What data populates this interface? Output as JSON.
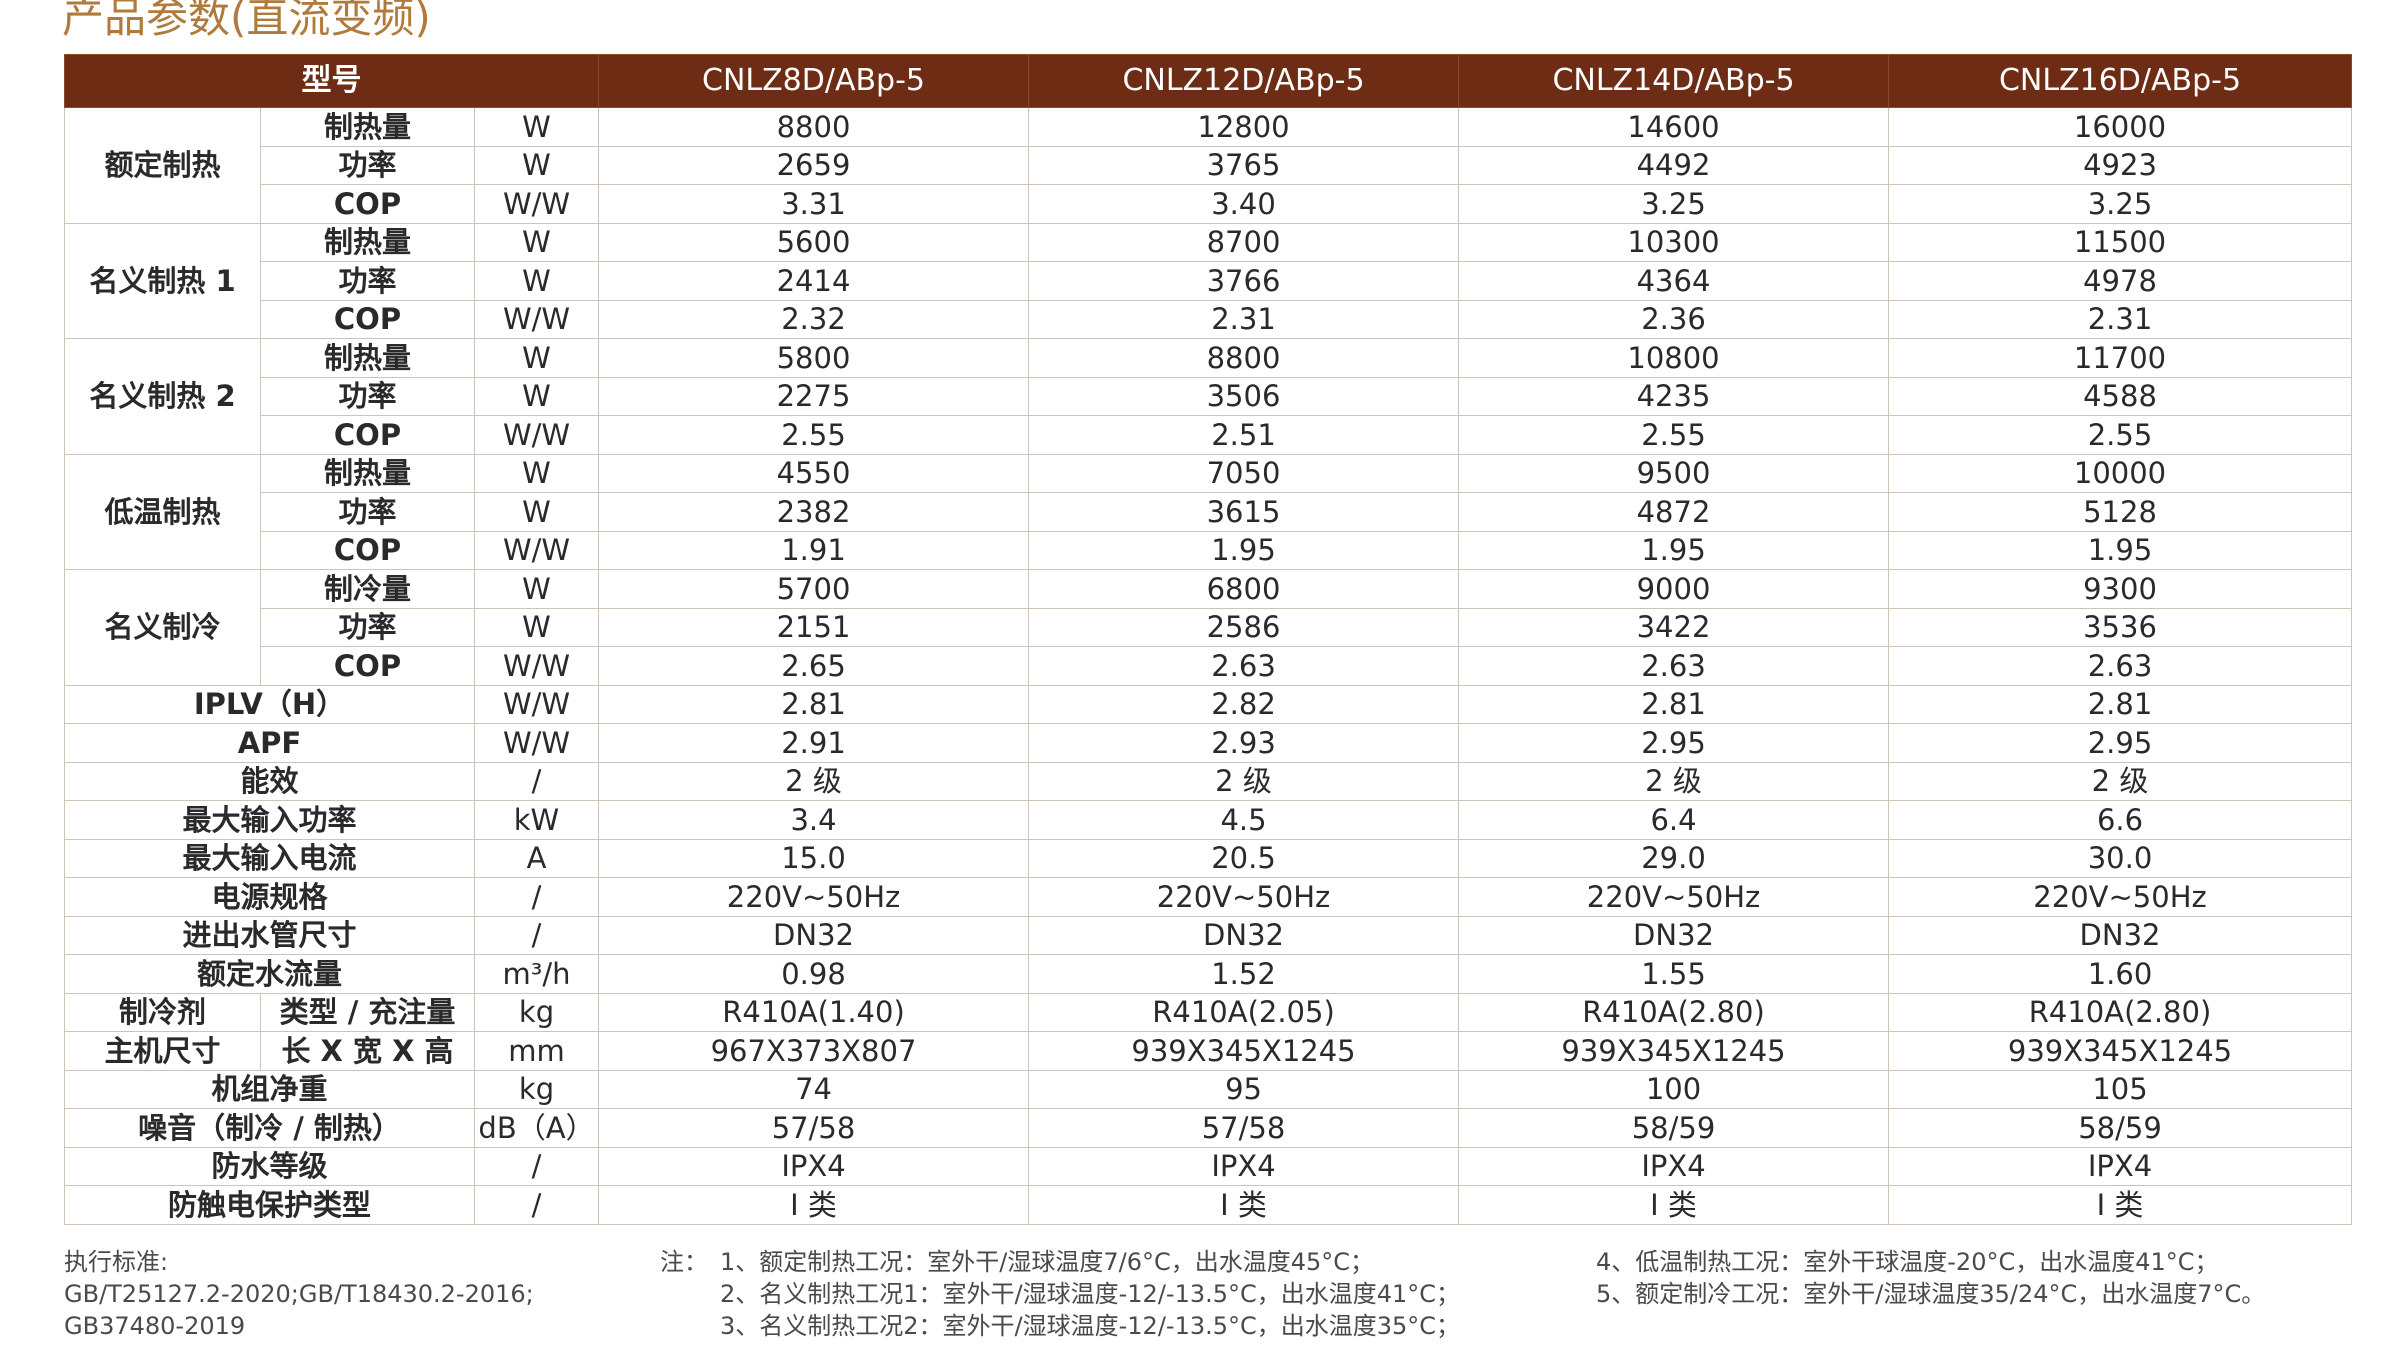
{
  "title": "产品参数(直流变频)",
  "header": {
    "model_label": "型号",
    "models": [
      "CNLZ8D/ABp-5",
      "CNLZ12D/ABp-5",
      "CNLZ14D/ABp-5",
      "CNLZ16D/ABp-5"
    ]
  },
  "groups": [
    {
      "name": "额定制热",
      "rows": [
        {
          "label": "制热量",
          "unit": "W",
          "values": [
            "8800",
            "12800",
            "14600",
            "16000"
          ]
        },
        {
          "label": "功率",
          "unit": "W",
          "values": [
            "2659",
            "3765",
            "4492",
            "4923"
          ]
        },
        {
          "label": "COP",
          "unit": "W/W",
          "values": [
            "3.31",
            "3.40",
            "3.25",
            "3.25"
          ]
        }
      ]
    },
    {
      "name": "名义制热 1",
      "rows": [
        {
          "label": "制热量",
          "unit": "W",
          "values": [
            "5600",
            "8700",
            "10300",
            "11500"
          ]
        },
        {
          "label": "功率",
          "unit": "W",
          "values": [
            "2414",
            "3766",
            "4364",
            "4978"
          ]
        },
        {
          "label": "COP",
          "unit": "W/W",
          "values": [
            "2.32",
            "2.31",
            "2.36",
            "2.31"
          ]
        }
      ]
    },
    {
      "name": "名义制热 2",
      "rows": [
        {
          "label": "制热量",
          "unit": "W",
          "values": [
            "5800",
            "8800",
            "10800",
            "11700"
          ]
        },
        {
          "label": "功率",
          "unit": "W",
          "values": [
            "2275",
            "3506",
            "4235",
            "4588"
          ]
        },
        {
          "label": "COP",
          "unit": "W/W",
          "values": [
            "2.55",
            "2.51",
            "2.55",
            "2.55"
          ]
        }
      ]
    },
    {
      "name": "低温制热",
      "rows": [
        {
          "label": "制热量",
          "unit": "W",
          "values": [
            "4550",
            "7050",
            "9500",
            "10000"
          ]
        },
        {
          "label": "功率",
          "unit": "W",
          "values": [
            "2382",
            "3615",
            "4872",
            "5128"
          ]
        },
        {
          "label": "COP",
          "unit": "W/W",
          "values": [
            "1.91",
            "1.95",
            "1.95",
            "1.95"
          ]
        }
      ]
    },
    {
      "name": "名义制冷",
      "rows": [
        {
          "label": "制冷量",
          "unit": "W",
          "values": [
            "5700",
            "6800",
            "9000",
            "9300"
          ]
        },
        {
          "label": "功率",
          "unit": "W",
          "values": [
            "2151",
            "2586",
            "3422",
            "3536"
          ]
        },
        {
          "label": "COP",
          "unit": "W/W",
          "values": [
            "2.65",
            "2.63",
            "2.63",
            "2.63"
          ]
        }
      ]
    }
  ],
  "rows": [
    {
      "label": "IPLV（H）",
      "unit": "W/W",
      "values": [
        "2.81",
        "2.82",
        "2.81",
        "2.81"
      ]
    },
    {
      "label": "APF",
      "unit": "W/W",
      "values": [
        "2.91",
        "2.93",
        "2.95",
        "2.95"
      ]
    },
    {
      "label": "能效",
      "unit": "/",
      "values": [
        "2 级",
        "2 级",
        "2 级",
        "2 级"
      ]
    },
    {
      "label": "最大输入功率",
      "unit": "kW",
      "values": [
        "3.4",
        "4.5",
        "6.4",
        "6.6"
      ]
    },
    {
      "label": "最大输入电流",
      "unit": "A",
      "values": [
        "15.0",
        "20.5",
        "29.0",
        "30.0"
      ]
    },
    {
      "label": "电源规格",
      "unit": "/",
      "values": [
        "220V~50Hz",
        "220V~50Hz",
        "220V~50Hz",
        "220V~50Hz"
      ]
    },
    {
      "label": "进出水管尺寸",
      "unit": "/",
      "values": [
        "DN32",
        "DN32",
        "DN32",
        "DN32"
      ]
    },
    {
      "label": "额定水流量",
      "unit": "m³/h",
      "values": [
        "0.98",
        "1.52",
        "1.55",
        "1.60"
      ]
    },
    {
      "label": "制冷剂",
      "sub": "类型 / 充注量",
      "unit": "kg",
      "values": [
        "R410A(1.40)",
        "R410A(2.05)",
        "R410A(2.80)",
        "R410A(2.80)"
      ]
    },
    {
      "label": "主机尺寸",
      "sub": "长 X 宽 X 高",
      "unit": "mm",
      "values": [
        "967X373X807",
        "939X345X1245",
        "939X345X1245",
        "939X345X1245"
      ]
    },
    {
      "label": "机组净重",
      "unit": "kg",
      "values": [
        "74",
        "95",
        "100",
        "105"
      ]
    },
    {
      "label": "噪音（制冷 / 制热）",
      "unit": "dB（A）",
      "values": [
        "57/58",
        "57/58",
        "58/59",
        "58/59"
      ]
    },
    {
      "label": "防水等级",
      "unit": "/",
      "values": [
        "IPX4",
        "IPX4",
        "IPX4",
        "IPX4"
      ]
    },
    {
      "label": "防触电保护类型",
      "unit": "/",
      "values": [
        "I 类",
        "I 类",
        "I 类",
        "I 类"
      ]
    }
  ],
  "footer": {
    "standards": [
      "执行标准:",
      "GB/T25127.2-2020;GB/T18430.2-2016;",
      "GB37480-2019"
    ],
    "notes_prefix": "注：",
    "notes_col1": [
      "1、额定制热工况：室外干/湿球温度7/6°C，出水温度45°C；",
      "2、名义制热工况1：室外干/湿球温度-12/-13.5°C，出水温度41°C；",
      "3、名义制热工况2：室外干/湿球温度-12/-13.5°C，出水温度35°C；"
    ],
    "notes_col2": [
      "4、低温制热工况：室外干球温度-20°C，出水温度41°C；",
      "5、额定制冷工况：室外干/湿球温度35/24°C，出水温度7°C。"
    ]
  }
}
